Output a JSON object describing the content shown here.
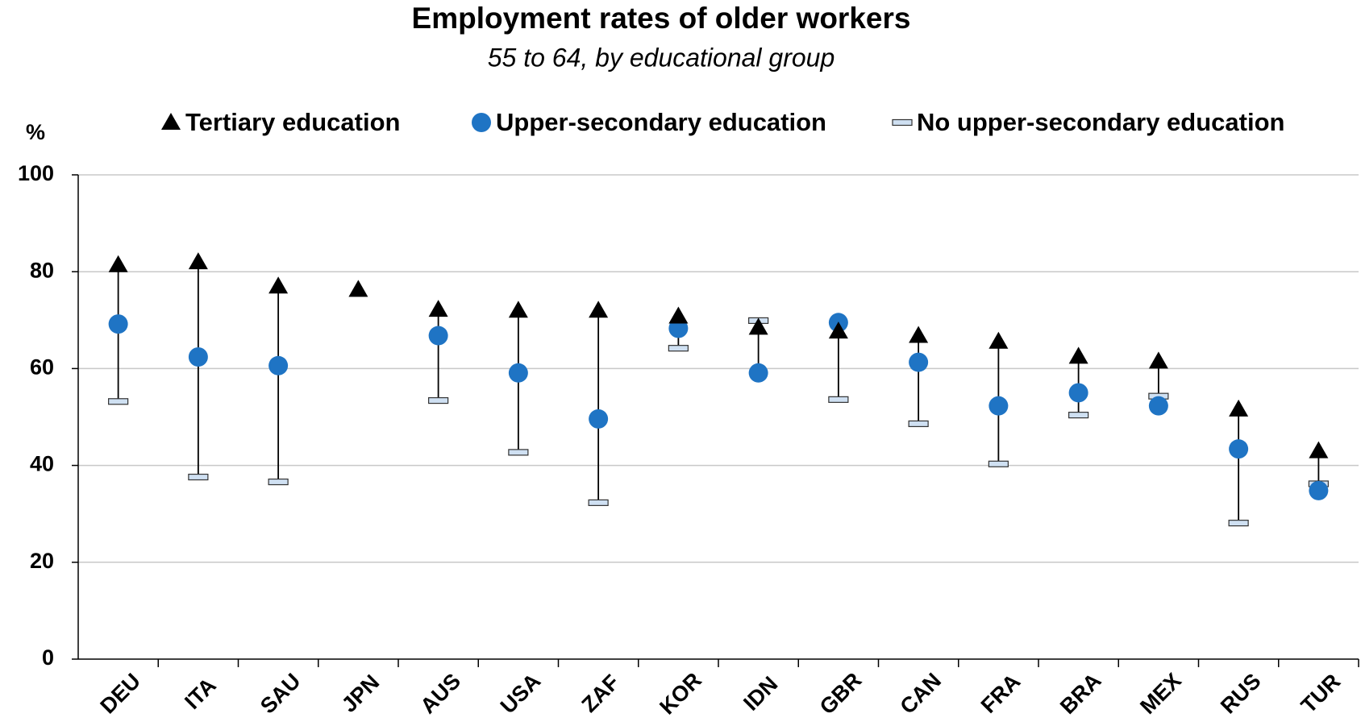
{
  "chart_data": {
    "type": "range-dot",
    "title": "Employment rates of older workers",
    "subtitle": "55 to 64, by educational group",
    "y_label": "%",
    "categories": [
      "DEU",
      "ITA",
      "SAU",
      "JPN",
      "AUS",
      "USA",
      "ZAF",
      "KOR",
      "IDN",
      "GBR",
      "CAN",
      "FRA",
      "BRA",
      "MEX",
      "RUS",
      "TUR"
    ],
    "series": [
      {
        "name": "Tertiary education",
        "color": "#000000",
        "marker": "triangle",
        "values": [
          81.4,
          82,
          77,
          76.3,
          72.2,
          72,
          72,
          70.8,
          68.5,
          67.7,
          66.8,
          65.6,
          62.5,
          61.5,
          51.6,
          43
        ]
      },
      {
        "name": "Upper-secondary education",
        "color": "#1f74c4",
        "marker": "circle",
        "values": [
          69.2,
          62.4,
          60.6,
          null,
          66.8,
          59.1,
          49.6,
          68.3,
          59.1,
          69.5,
          61.3,
          52.3,
          55,
          52.3,
          43.4,
          34.8
        ]
      },
      {
        "name": "No upper-secondary education",
        "color": "#cfe0f2",
        "marker": "dash",
        "values": [
          53.2,
          37.6,
          36.6,
          null,
          53.4,
          42.7,
          32.3,
          64.2,
          69.9,
          53.6,
          48.6,
          40.3,
          50.4,
          54.3,
          28.1,
          36.2
        ]
      }
    ],
    "ylim": [
      0,
      100
    ],
    "yticks": [
      0,
      20,
      40,
      60,
      80,
      100
    ],
    "grid": true
  }
}
